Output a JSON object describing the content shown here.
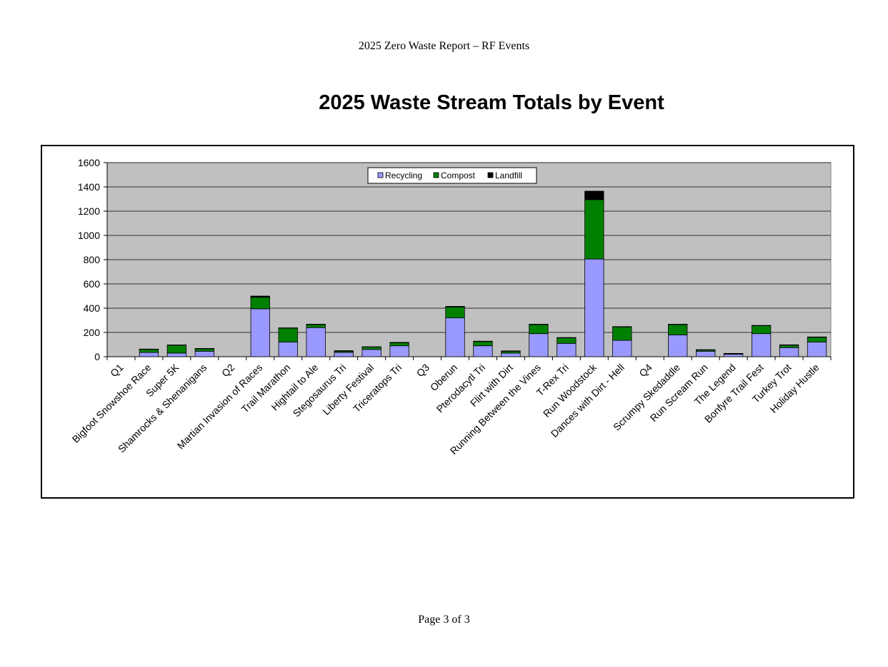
{
  "document": {
    "header": "2025 Zero Waste Report – RF Events",
    "footer": "Page 3 of 3"
  },
  "colors": {
    "plot_background": "#c0c0c0",
    "recycling": "#9999ff",
    "compost": "#008000",
    "landfill": "#000000"
  },
  "chart_data": {
    "type": "bar",
    "stacked": true,
    "title": "2025 Waste Stream Totals by Event",
    "xlabel": "",
    "ylabel": "",
    "ylim": [
      0,
      1600
    ],
    "yticks": [
      0,
      200,
      400,
      600,
      800,
      1000,
      1200,
      1400,
      1600
    ],
    "grid": true,
    "legend_position": "top-center",
    "categories": [
      "Q1",
      "Bigfoot Snowshoe Race",
      "Super 5K",
      "Shamrocks & Shenanigans",
      "Q2",
      "Martian Invasion of Races",
      "Trail Marathon",
      "Hightail to Ale",
      "Stegosaurus Tri",
      "Liberty Festival",
      "Triceratops Tri",
      "Q3",
      "Oberun",
      "Pterodacytl Tri",
      "Flirt with Dirt",
      "Running Between the Vines",
      "T-Rex Tri",
      "Run Woodstock",
      "Dances with Dirt - Hell",
      "Q4",
      "Scrumpy Skedaddle",
      "Run Scream Run",
      "The Legend",
      "Bonfyre Trail Fest",
      "Turkey Trot",
      "Holiday Hustle"
    ],
    "series": [
      {
        "name": "Recycling",
        "values": [
          0,
          35,
          30,
          45,
          0,
          395,
          120,
          240,
          35,
          60,
          90,
          0,
          320,
          90,
          30,
          190,
          110,
          805,
          135,
          0,
          180,
          45,
          20,
          190,
          75,
          120
        ]
      },
      {
        "name": "Compost",
        "values": [
          0,
          25,
          65,
          20,
          0,
          95,
          115,
          25,
          10,
          20,
          25,
          0,
          90,
          35,
          15,
          75,
          45,
          490,
          110,
          0,
          85,
          10,
          5,
          65,
          20,
          40
        ]
      },
      {
        "name": "Landfill",
        "values": [
          0,
          3,
          2,
          3,
          0,
          10,
          3,
          3,
          5,
          2,
          3,
          0,
          5,
          3,
          3,
          3,
          3,
          70,
          3,
          0,
          3,
          3,
          2,
          3,
          3,
          3
        ]
      }
    ]
  }
}
